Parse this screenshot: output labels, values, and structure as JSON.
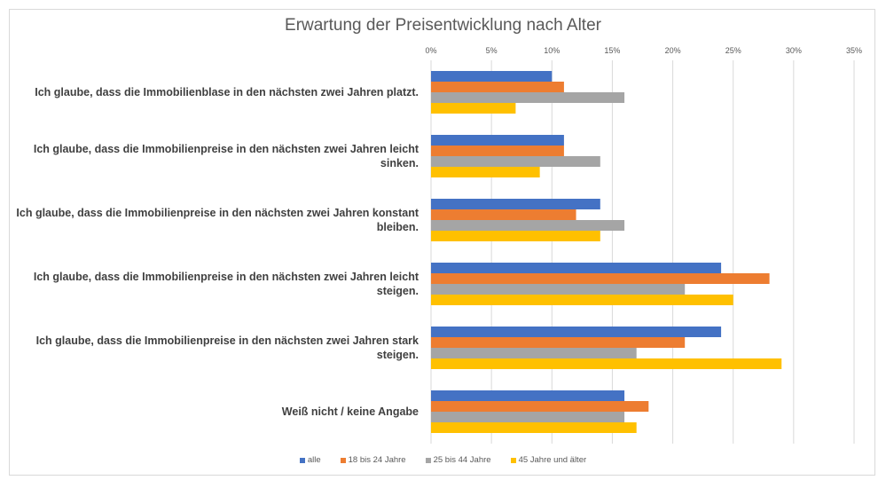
{
  "chart_data": {
    "type": "bar",
    "orientation": "horizontal",
    "title": "Erwartung der Preisentwicklung nach Alter",
    "categories": [
      "Ich glaube, dass die Immobilienblase in den nächsten zwei Jahren platzt.",
      "Ich glaube, dass die Immobilienpreise in den nächsten zwei Jahren leicht sinken.",
      "Ich glaube, dass die Immobilienpreise in den nächsten zwei Jahren konstant bleiben.",
      "Ich glaube, dass die Immobilienpreise in den nächsten zwei Jahren leicht steigen.",
      "Ich glaube, dass die Immobilienpreise in den nächsten zwei Jahren stark steigen.",
      "Weiß nicht / keine Angabe"
    ],
    "series": [
      {
        "name": "alle",
        "color": "#4472c4",
        "values": [
          10,
          11,
          14,
          24,
          24,
          16
        ]
      },
      {
        "name": "18 bis 24 Jahre",
        "color": "#ed7d31",
        "values": [
          11,
          11,
          12,
          28,
          21,
          18
        ]
      },
      {
        "name": "25 bis 44 Jahre",
        "color": "#a5a5a5",
        "values": [
          16,
          14,
          16,
          21,
          17,
          16
        ]
      },
      {
        "name": "45 Jahre und älter",
        "color": "#ffc000",
        "values": [
          7,
          9,
          14,
          25,
          29,
          17
        ]
      }
    ],
    "xlim": [
      0,
      35
    ],
    "xticks": [
      "0%",
      "5%",
      "10%",
      "15%",
      "20%",
      "25%",
      "30%",
      "35%"
    ],
    "axis_position": "top",
    "grid": true,
    "legend": "bottom"
  }
}
